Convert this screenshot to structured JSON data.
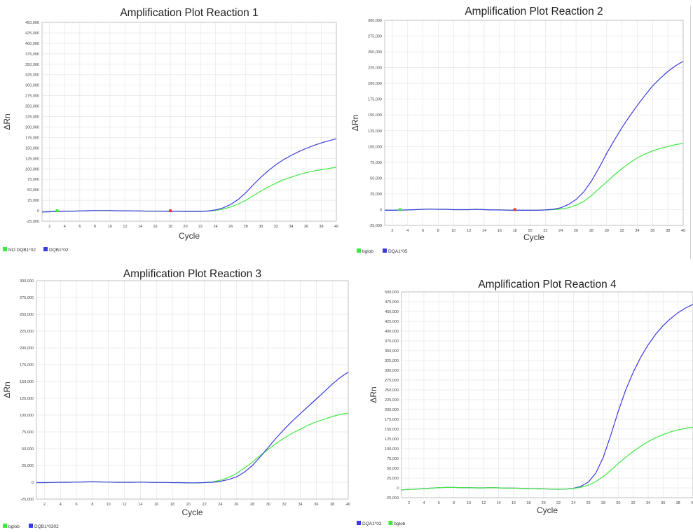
{
  "chart_data": [
    {
      "type": "line",
      "title": "Amplification Plot Reaction 1",
      "xlabel": "Cycle",
      "ylabel": "ΔRn",
      "xlim": [
        1,
        40
      ],
      "ylim": [
        -25000,
        450000
      ],
      "x_ticks": [
        2,
        4,
        6,
        8,
        10,
        12,
        14,
        16,
        18,
        20,
        22,
        24,
        26,
        28,
        30,
        32,
        34,
        36,
        38,
        40
      ],
      "y_ticks": [
        -25000,
        0,
        25000,
        50000,
        75000,
        100000,
        125000,
        150000,
        175000,
        200000,
        225000,
        250000,
        275000,
        300000,
        325000,
        350000,
        375000,
        400000,
        425000,
        450000
      ],
      "y_tick_labels": [
        "-25,000",
        "0",
        "25,000",
        "50,000",
        "75,000",
        "100,000",
        "125,000",
        "150,000",
        "175,000",
        "200,000",
        "225,000",
        "250,000",
        "275,000",
        "300,000",
        "325,000",
        "350,000",
        "375,000",
        "400,000",
        "425,000",
        "450,000"
      ],
      "grid": true,
      "legend_position": "bottom-left",
      "x": [
        1,
        2,
        3,
        4,
        5,
        6,
        7,
        8,
        9,
        10,
        11,
        12,
        13,
        14,
        15,
        16,
        17,
        18,
        19,
        20,
        21,
        22,
        23,
        24,
        25,
        26,
        27,
        28,
        29,
        30,
        31,
        32,
        33,
        34,
        35,
        36,
        37,
        38,
        39,
        40
      ],
      "series": [
        {
          "name": "NO DQB1*02",
          "color": "#3ee83e",
          "values": [
            -3000,
            -2500,
            -2000,
            -1500,
            -1000,
            -500,
            0,
            500,
            500,
            500,
            0,
            0,
            -500,
            -500,
            -1000,
            -1000,
            -1000,
            -1500,
            -1500,
            -2000,
            -2000,
            -2000,
            -1000,
            1000,
            4000,
            9000,
            16000,
            25000,
            36000,
            47000,
            57000,
            66000,
            74000,
            80000,
            86000,
            91000,
            95000,
            98000,
            101000,
            104000
          ]
        },
        {
          "name": "DQB1*02",
          "color": "#3a3ae0",
          "values": [
            -3000,
            -2500,
            -2000,
            -1500,
            -1000,
            -500,
            0,
            500,
            500,
            500,
            0,
            0,
            -500,
            -500,
            -1000,
            -1000,
            -1000,
            -1500,
            -1500,
            -2000,
            -2000,
            -2000,
            -500,
            2000,
            7000,
            15000,
            27000,
            43000,
            62000,
            80000,
            96000,
            110000,
            122000,
            132000,
            141000,
            149000,
            156000,
            162000,
            167000,
            172000
          ]
        }
      ],
      "markers": [
        {
          "x": 3,
          "color": "#3ee83e"
        },
        {
          "x": 18,
          "color": "#e03a3a"
        }
      ]
    },
    {
      "type": "line",
      "title": "Amplification Plot Reaction 2",
      "xlabel": "Cycle",
      "ylabel": "ΔRn",
      "xlim": [
        1,
        40
      ],
      "ylim": [
        -25000,
        300000
      ],
      "x_ticks": [
        2,
        4,
        6,
        8,
        10,
        12,
        14,
        16,
        18,
        20,
        22,
        24,
        26,
        28,
        30,
        32,
        34,
        36,
        38,
        40
      ],
      "y_ticks": [
        -25000,
        0,
        25000,
        50000,
        75000,
        100000,
        125000,
        150000,
        175000,
        200000,
        225000,
        250000,
        275000,
        300000
      ],
      "y_tick_labels": [
        "-25,000",
        "0",
        "25,000",
        "50,000",
        "75,000",
        "100,000",
        "125,000",
        "150,000",
        "175,000",
        "200,000",
        "225,000",
        "250,000",
        "275,000",
        "300,000"
      ],
      "grid": true,
      "legend_position": "bottom-left",
      "x": [
        1,
        2,
        3,
        4,
        5,
        6,
        7,
        8,
        9,
        10,
        11,
        12,
        13,
        14,
        15,
        16,
        17,
        18,
        19,
        20,
        21,
        22,
        23,
        24,
        25,
        26,
        27,
        28,
        29,
        30,
        31,
        32,
        33,
        34,
        35,
        36,
        37,
        38,
        39,
        40
      ],
      "series": [
        {
          "name": "bglob",
          "color": "#3ee83e",
          "values": [
            -1000,
            -1000,
            -800,
            -500,
            0,
            500,
            800,
            500,
            500,
            0,
            0,
            0,
            500,
            0,
            -500,
            -500,
            -800,
            -1000,
            -1000,
            -1000,
            -1000,
            -500,
            0,
            1000,
            3000,
            7000,
            13000,
            22000,
            33000,
            44000,
            55000,
            65000,
            74000,
            82000,
            88000,
            93000,
            97000,
            100000,
            103000,
            105000
          ]
        },
        {
          "name": "DQA1*05",
          "color": "#3a3ae0",
          "values": [
            -1000,
            -1000,
            -800,
            -500,
            0,
            500,
            800,
            500,
            500,
            0,
            0,
            0,
            500,
            0,
            -500,
            -500,
            -800,
            -1000,
            -1000,
            -1000,
            -1000,
            -500,
            500,
            3000,
            8000,
            16000,
            28000,
            45000,
            66000,
            89000,
            110000,
            130000,
            148000,
            165000,
            181000,
            196000,
            208000,
            219000,
            228000,
            235000
          ]
        }
      ],
      "markers": [
        {
          "x": 3,
          "color": "#3ee83e"
        },
        {
          "x": 18,
          "color": "#e03a3a"
        }
      ]
    },
    {
      "type": "line",
      "title": "Amplification Plot Reaction 3",
      "xlabel": "Cycle",
      "ylabel": "ΔRn",
      "xlim": [
        1,
        40
      ],
      "ylim": [
        -25000,
        300000
      ],
      "x_ticks": [
        2,
        4,
        6,
        8,
        10,
        12,
        14,
        16,
        18,
        20,
        22,
        24,
        26,
        28,
        30,
        32,
        34,
        36,
        38,
        40
      ],
      "y_ticks": [
        -25000,
        0,
        25000,
        50000,
        75000,
        100000,
        125000,
        150000,
        175000,
        200000,
        225000,
        250000,
        275000,
        300000
      ],
      "y_tick_labels": [
        "-25,000",
        "0",
        "25,000",
        "50,000",
        "75,000",
        "100,000",
        "125,000",
        "150,000",
        "175,000",
        "200,000",
        "225,000",
        "250,000",
        "275,000",
        "300,000"
      ],
      "grid": true,
      "legend_position": "bottom-left",
      "x": [
        1,
        2,
        3,
        4,
        5,
        6,
        7,
        8,
        9,
        10,
        11,
        12,
        13,
        14,
        15,
        16,
        17,
        18,
        19,
        20,
        21,
        22,
        23,
        24,
        25,
        26,
        27,
        28,
        29,
        30,
        31,
        32,
        33,
        34,
        35,
        36,
        37,
        38,
        39,
        40
      ],
      "series": [
        {
          "name": "bglob",
          "color": "#3ee83e",
          "values": [
            -500,
            -500,
            -300,
            0,
            0,
            300,
            500,
            800,
            500,
            300,
            0,
            0,
            0,
            300,
            0,
            -300,
            -300,
            -500,
            -500,
            -800,
            -800,
            -500,
            500,
            3000,
            7000,
            13000,
            21000,
            30000,
            40000,
            49000,
            58000,
            66000,
            73000,
            79000,
            85000,
            90000,
            94000,
            98000,
            101000,
            103000
          ]
        },
        {
          "name": "DQB1*0302",
          "color": "#3a3ae0",
          "values": [
            -500,
            -500,
            -300,
            0,
            0,
            300,
            500,
            800,
            500,
            300,
            0,
            0,
            0,
            300,
            0,
            -300,
            -300,
            -500,
            -500,
            -800,
            -800,
            -500,
            0,
            1500,
            4000,
            8000,
            15000,
            25000,
            38000,
            52000,
            66000,
            79000,
            91000,
            102000,
            113000,
            124000,
            135000,
            146000,
            156000,
            164000
          ]
        }
      ]
    },
    {
      "type": "line",
      "title": "Amplification Plot Reaction 4",
      "xlabel": "Cycle",
      "ylabel": "ΔRn",
      "xlim": [
        1,
        40
      ],
      "ylim": [
        -25000,
        500000
      ],
      "x_ticks": [
        2,
        4,
        6,
        8,
        10,
        12,
        14,
        16,
        18,
        20,
        22,
        24,
        26,
        28,
        30,
        32,
        34,
        36,
        38,
        40
      ],
      "y_ticks": [
        -25000,
        0,
        25000,
        50000,
        75000,
        100000,
        125000,
        150000,
        175000,
        200000,
        225000,
        250000,
        275000,
        300000,
        325000,
        350000,
        375000,
        400000,
        425000,
        450000,
        475000,
        500000
      ],
      "y_tick_labels": [
        "-25,000",
        "0",
        "25,000",
        "50,000",
        "75,000",
        "100,000",
        "125,000",
        "150,000",
        "175,000",
        "200,000",
        "225,000",
        "250,000",
        "275,000",
        "300,000",
        "325,000",
        "350,000",
        "375,000",
        "400,000",
        "425,000",
        "450,000",
        "475,000",
        "500,000"
      ],
      "grid": true,
      "legend_position": "bottom-left",
      "x": [
        1,
        2,
        3,
        4,
        5,
        6,
        7,
        8,
        9,
        10,
        11,
        12,
        13,
        14,
        15,
        16,
        17,
        18,
        19,
        20,
        21,
        22,
        23,
        24,
        25,
        26,
        27,
        28,
        29,
        30,
        31,
        32,
        33,
        34,
        35,
        36,
        37,
        38,
        39,
        40
      ],
      "series": [
        {
          "name": "DQA1*03",
          "color": "#3a3ae0",
          "values": [
            -5000,
            -4000,
            -3000,
            -2000,
            -500,
            500,
            1000,
            1000,
            500,
            500,
            0,
            0,
            500,
            0,
            -500,
            -500,
            -1000,
            -1500,
            -2000,
            -2500,
            -3000,
            -3500,
            -3000,
            -1000,
            4000,
            15000,
            38000,
            78000,
            135000,
            195000,
            250000,
            295000,
            333000,
            365000,
            392000,
            414000,
            432000,
            447000,
            459000,
            468000
          ]
        },
        {
          "name": "bglob",
          "color": "#3ee83e",
          "values": [
            -5000,
            -4000,
            -3000,
            -2000,
            -500,
            500,
            1000,
            1000,
            500,
            500,
            0,
            0,
            500,
            0,
            -500,
            -500,
            -1000,
            -1500,
            -2000,
            -2500,
            -3000,
            -3500,
            -3000,
            -1500,
            1500,
            7000,
            16000,
            29000,
            45000,
            62000,
            78000,
            93000,
            106000,
            118000,
            128000,
            136000,
            143000,
            148000,
            152000,
            155000
          ]
        }
      ]
    }
  ]
}
